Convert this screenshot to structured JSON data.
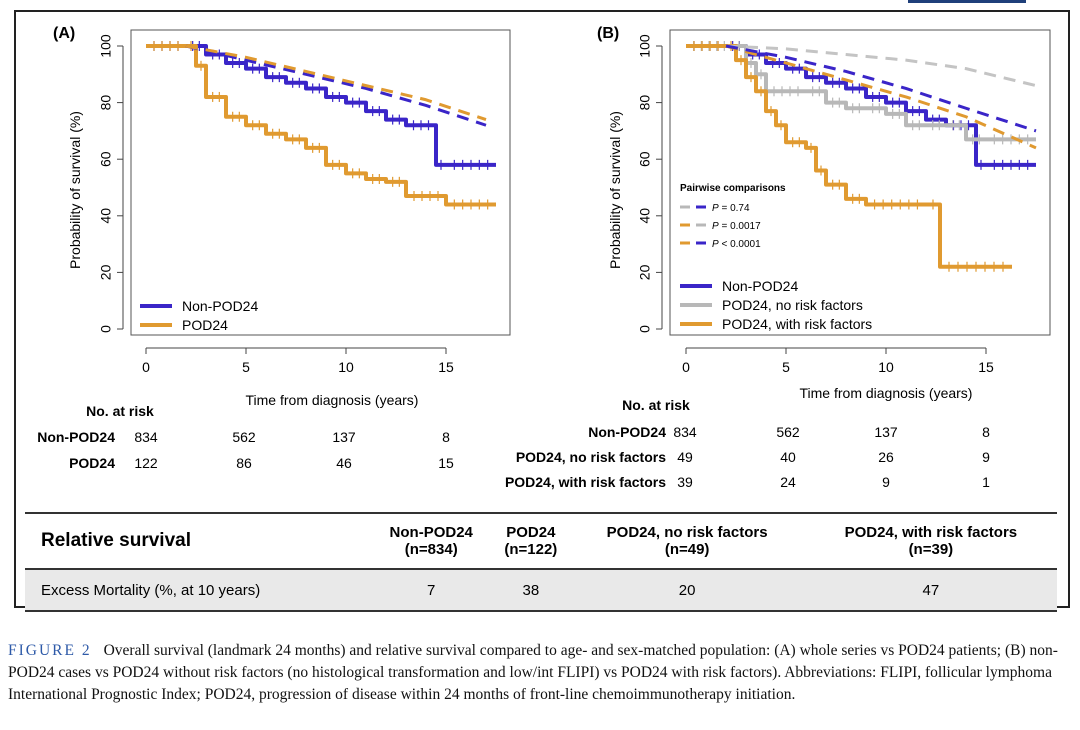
{
  "figure": {
    "rel_table": {
      "headers": [
        "Relative survival",
        "Non-POD24\n(n=834)",
        "POD24\n(n=122)",
        "POD24, no risk factors\n(n=49)",
        "POD24, with risk factors\n(n=39)"
      ],
      "rows": [
        [
          "Excess Mortality (%, at 10 years)",
          "7",
          "38",
          "20",
          "47"
        ]
      ]
    },
    "caption": {
      "label": "FIGURE 2",
      "text": "Overall survival (landmark 24 months) and relative survival compared to age- and sex-matched population: (A) whole series vs POD24 patients; (B) non-POD24 cases vs POD24 without risk factors (no histological transformation and low/int FLIPI) vs POD24 with risk factors). Abbreviations: FLIPI, follicular lymphoma International Prognostic Index; POD24, progression of disease within 24 months of front-line chemoimmunotherapy initiation."
    }
  },
  "chart_data": [
    {
      "type": "line",
      "panel": "(A)",
      "xlabel": "Time from diagnosis (years)",
      "ylabel": "Probability of survival (%)",
      "xlim": [
        0,
        18
      ],
      "ylim": [
        0,
        100
      ],
      "xticks": [
        0,
        5,
        10,
        15
      ],
      "yticks": [
        0,
        20,
        40,
        60,
        80,
        100
      ],
      "colors": {
        "non_pod24": "#3a25c8",
        "pod24": "#e09a30"
      },
      "series": [
        {
          "name": "Non-POD24",
          "color": "#3a25c8",
          "width": 4,
          "step": true,
          "x": [
            0,
            2,
            3,
            4,
            5,
            6,
            7,
            8,
            9,
            10,
            11,
            12,
            13,
            14.5,
            15,
            17.5
          ],
          "y": [
            100,
            100,
            97,
            94,
            92,
            89,
            87,
            85,
            82,
            80,
            77,
            74,
            72,
            58,
            58,
            58
          ]
        },
        {
          "name": "POD24",
          "color": "#e09a30",
          "width": 4,
          "step": true,
          "x": [
            0,
            2,
            2.5,
            3,
            4,
            5,
            6,
            7,
            8,
            9,
            10,
            11,
            12,
            13,
            15,
            17.5
          ],
          "y": [
            100,
            100,
            93,
            82,
            75,
            72,
            69,
            67,
            64,
            58,
            55,
            53,
            52,
            47,
            44,
            44
          ]
        },
        {
          "color": "#3a25c8",
          "width": 3,
          "dashed": true,
          "x": [
            2,
            5,
            8,
            11,
            14,
            17
          ],
          "y": [
            100,
            95,
            90,
            85,
            79,
            72
          ]
        },
        {
          "color": "#e09a30",
          "width": 3,
          "dashed": true,
          "x": [
            2,
            5,
            8,
            11,
            14,
            17
          ],
          "y": [
            100,
            96,
            91,
            86,
            81,
            74
          ]
        }
      ],
      "legend": {
        "position": "bottom-left",
        "items": [
          {
            "label": "Non-POD24",
            "color": "#3a25c8"
          },
          {
            "label": "POD24",
            "color": "#e09a30"
          }
        ]
      },
      "risk_table": {
        "title": "No. at risk",
        "rows": [
          {
            "label": "Non-POD24",
            "values": [
              "834",
              "562",
              "137",
              "8"
            ]
          },
          {
            "label": "POD24",
            "values": [
              "122",
              "86",
              "46",
              "15"
            ]
          }
        ]
      }
    },
    {
      "type": "line",
      "panel": "(B)",
      "xlabel": "Time from diagnosis (years)",
      "ylabel": "Probability of survival (%)",
      "xlim": [
        0,
        18
      ],
      "ylim": [
        0,
        100
      ],
      "xticks": [
        0,
        5,
        10,
        15
      ],
      "yticks": [
        0,
        20,
        40,
        60,
        80,
        100
      ],
      "series": [
        {
          "name": "Non-POD24",
          "color": "#3a25c8",
          "width": 4,
          "step": true,
          "x": [
            0,
            2,
            3,
            4,
            5,
            6,
            7,
            8,
            9,
            10,
            11,
            12,
            13,
            14.5,
            15,
            17.5
          ],
          "y": [
            100,
            100,
            97,
            94,
            92,
            89,
            87,
            85,
            82,
            80,
            77,
            74,
            72,
            58,
            58,
            58
          ]
        },
        {
          "name": "POD24, no risk factors",
          "color": "#b8b8b8",
          "width": 4,
          "step": true,
          "x": [
            0,
            2.3,
            3,
            3.5,
            4,
            6,
            7,
            8,
            9,
            10,
            11,
            12,
            13,
            14,
            15,
            17.5
          ],
          "y": [
            100,
            100,
            94,
            90,
            84,
            84,
            80,
            78,
            78,
            76,
            72,
            72,
            72,
            67,
            67,
            67
          ]
        },
        {
          "name": "POD24, with risk factors",
          "color": "#e09a30",
          "width": 4,
          "step": true,
          "x": [
            0,
            2,
            2.5,
            3,
            3.5,
            4,
            4.5,
            5,
            6,
            6.5,
            7,
            8,
            9,
            12,
            12.7,
            16.3
          ],
          "y": [
            100,
            100,
            95,
            89,
            84,
            77,
            72,
            66,
            64,
            56,
            51,
            46,
            44,
            44,
            22,
            22
          ]
        },
        {
          "color": "#c4c4c4",
          "width": 3,
          "dashed": true,
          "x": [
            2,
            5,
            8,
            11,
            14,
            17.5
          ],
          "y": [
            100,
            99,
            97,
            95,
            92,
            86
          ]
        },
        {
          "color": "#e09a30",
          "width": 3,
          "dashed": true,
          "x": [
            2,
            5,
            8,
            11,
            14,
            17.5
          ],
          "y": [
            100,
            94,
            88,
            82,
            75,
            64
          ]
        },
        {
          "color": "#3a25c8",
          "width": 3,
          "dashed": true,
          "x": [
            2,
            5,
            8,
            11,
            14,
            17.5
          ],
          "y": [
            100,
            96,
            91,
            85,
            78,
            70
          ]
        }
      ],
      "legend": {
        "position": "bottom-left",
        "items": [
          {
            "label": "Non-POD24",
            "color": "#3a25c8"
          },
          {
            "label": "POD24, no risk factors",
            "color": "#b8b8b8"
          },
          {
            "label": "POD24, with risk factors",
            "color": "#e09a30"
          }
        ]
      },
      "pairwise": {
        "title": "Pairwise comparisons",
        "items": [
          {
            "p_label": "P",
            "text": " = 0.74",
            "colors": [
              "#b8b8b8",
              "#3a25c8"
            ]
          },
          {
            "p_label": "P",
            "text": " = 0.0017",
            "colors": [
              "#e09a30",
              "#b8b8b8"
            ]
          },
          {
            "p_label": "P",
            "text": " < 0.0001",
            "colors": [
              "#e09a30",
              "#3a25c8"
            ]
          }
        ]
      },
      "risk_table": {
        "title": "No. at risk",
        "rows": [
          {
            "label": "Non-POD24",
            "values": [
              "834",
              "562",
              "137",
              "8"
            ]
          },
          {
            "label": "POD24, no risk factors",
            "values": [
              "49",
              "40",
              "26",
              "9"
            ]
          },
          {
            "label": "POD24, with risk factors",
            "values": [
              "39",
              "24",
              "9",
              "1"
            ]
          }
        ]
      }
    }
  ]
}
